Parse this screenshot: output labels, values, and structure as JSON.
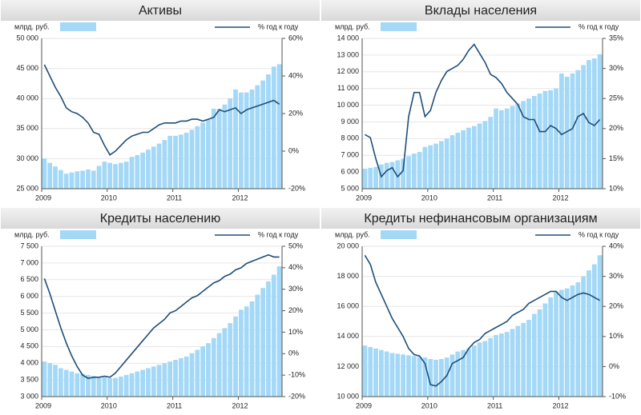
{
  "chart_data": [
    {
      "type": "combo",
      "title": "Активы",
      "categories": [
        "2009",
        null,
        null,
        null,
        null,
        null,
        null,
        null,
        null,
        null,
        null,
        null,
        "2010",
        null,
        null,
        null,
        null,
        null,
        null,
        null,
        null,
        null,
        null,
        null,
        "2011",
        null,
        null,
        null,
        null,
        null,
        null,
        null,
        null,
        null,
        null,
        null,
        "2012",
        null,
        null,
        null,
        null,
        null,
        null,
        null
      ],
      "series": [
        {
          "name": "млрд. руб.",
          "type": "bar",
          "color": "#a3d8f7",
          "values": [
            30000,
            29300,
            28700,
            28100,
            27500,
            27700,
            27900,
            28000,
            28200,
            28000,
            28800,
            29500,
            29300,
            29100,
            29300,
            29500,
            30300,
            30600,
            31000,
            31500,
            32000,
            32500,
            33100,
            33800,
            33800,
            34000,
            34300,
            34800,
            35400,
            36000,
            36500,
            38300,
            38300,
            39000,
            40000,
            41500,
            41000,
            41000,
            41500,
            42200,
            43000,
            44000,
            45300,
            45700
          ]
        },
        {
          "name": "% год к году",
          "type": "line",
          "axis": "y2",
          "color": "#1f4e79",
          "values": [
            46,
            40,
            34,
            29,
            23,
            21,
            20,
            18,
            15,
            10,
            9,
            3,
            -2,
            0,
            3,
            6,
            8,
            9,
            10,
            10,
            12,
            14,
            15,
            15,
            15,
            16,
            16,
            17,
            17,
            16,
            17,
            18,
            22,
            21,
            22,
            23,
            20,
            22,
            23,
            24,
            25,
            26,
            27,
            25
          ]
        }
      ],
      "ylim": [
        25000,
        50000
      ],
      "yticks": [
        {
          "value": 25000,
          "label": "25 000"
        },
        {
          "value": 30000,
          "label": "30 000"
        },
        {
          "value": 35000,
          "label": "35 000"
        },
        {
          "value": 40000,
          "label": "40 000"
        },
        {
          "value": 45000,
          "label": "45 000"
        },
        {
          "value": 50000,
          "label": "50 000"
        }
      ],
      "y2lim": [
        -20,
        60
      ],
      "y2ticks": [
        {
          "value": -20,
          "label": "-20%"
        },
        {
          "value": 0,
          "label": "0%"
        },
        {
          "value": 20,
          "label": "20%"
        },
        {
          "value": 40,
          "label": "40%"
        },
        {
          "value": 60,
          "label": "60%"
        }
      ],
      "grid": true
    },
    {
      "type": "combo",
      "title": "Вклады населения",
      "categories": [
        "2009",
        null,
        null,
        null,
        null,
        null,
        null,
        null,
        null,
        null,
        null,
        null,
        "2010",
        null,
        null,
        null,
        null,
        null,
        null,
        null,
        null,
        null,
        null,
        null,
        "2011",
        null,
        null,
        null,
        null,
        null,
        null,
        null,
        null,
        null,
        null,
        null,
        "2012",
        null,
        null,
        null,
        null,
        null,
        null,
        null
      ],
      "series": [
        {
          "name": "млрд. руб.",
          "type": "bar",
          "color": "#a3d8f7",
          "values": [
            6200,
            6250,
            6300,
            6450,
            6550,
            6600,
            6700,
            6800,
            6950,
            7100,
            7200,
            7500,
            7600,
            7700,
            7850,
            8000,
            8200,
            8350,
            8500,
            8650,
            8750,
            8900,
            9050,
            9300,
            9800,
            9700,
            9800,
            9950,
            10100,
            10250,
            10400,
            10550,
            10700,
            10850,
            10900,
            11000,
            11900,
            11700,
            11900,
            12100,
            12400,
            12700,
            12800,
            13050
          ]
        },
        {
          "name": "% год к году",
          "type": "line",
          "axis": "y2",
          "color": "#1f4e79",
          "values": [
            19,
            18.5,
            15,
            12,
            13,
            13.5,
            12,
            13,
            22,
            26,
            26,
            22,
            23,
            26,
            28,
            29.5,
            30,
            30.5,
            31.5,
            33,
            34,
            32.5,
            31,
            29,
            28.5,
            27.5,
            26,
            25,
            24,
            22,
            21.5,
            21.5,
            19.5,
            19.5,
            20.5,
            20,
            19,
            19.5,
            20,
            22,
            22.5,
            21,
            20.5,
            21.5
          ]
        }
      ],
      "ylim": [
        5000,
        14000
      ],
      "yticks": [
        {
          "value": 5000,
          "label": "5 000"
        },
        {
          "value": 6000,
          "label": "6 000"
        },
        {
          "value": 7000,
          "label": "7 000"
        },
        {
          "value": 8000,
          "label": "8 000"
        },
        {
          "value": 9000,
          "label": "9 000"
        },
        {
          "value": 10000,
          "label": "10 000"
        },
        {
          "value": 11000,
          "label": "11 000"
        },
        {
          "value": 12000,
          "label": "12 000"
        },
        {
          "value": 13000,
          "label": "13 000"
        },
        {
          "value": 14000,
          "label": "14 000"
        }
      ],
      "y2lim": [
        10,
        35
      ],
      "y2ticks": [
        {
          "value": 10,
          "label": "10%"
        },
        {
          "value": 15,
          "label": "15%"
        },
        {
          "value": 20,
          "label": "20%"
        },
        {
          "value": 25,
          "label": "25%"
        },
        {
          "value": 30,
          "label": "30%"
        },
        {
          "value": 35,
          "label": "35%"
        }
      ],
      "grid": true
    },
    {
      "type": "combo",
      "title": "Кредиты населению",
      "categories": [
        "2009",
        null,
        null,
        null,
        null,
        null,
        null,
        null,
        null,
        null,
        null,
        null,
        "2010",
        null,
        null,
        null,
        null,
        null,
        null,
        null,
        null,
        null,
        null,
        null,
        "2011",
        null,
        null,
        null,
        null,
        null,
        null,
        null,
        null,
        null,
        null,
        null,
        "2012",
        null,
        null,
        null,
        null,
        null,
        null,
        null
      ],
      "series": [
        {
          "name": "млрд. руб.",
          "type": "bar",
          "color": "#a3d8f7",
          "values": [
            4050,
            4000,
            3950,
            3850,
            3800,
            3750,
            3700,
            3680,
            3650,
            3620,
            3600,
            3580,
            3550,
            3560,
            3600,
            3650,
            3700,
            3750,
            3800,
            3850,
            3900,
            3950,
            4000,
            4050,
            4100,
            4150,
            4200,
            4300,
            4400,
            4500,
            4600,
            4750,
            4900,
            5050,
            5200,
            5400,
            5600,
            5700,
            5850,
            6050,
            6250,
            6450,
            6650,
            6900
          ]
        },
        {
          "name": "% год к году",
          "type": "line",
          "axis": "y2",
          "color": "#1f4e79",
          "values": [
            35,
            28,
            20,
            12,
            5,
            -1,
            -6,
            -10,
            -11.5,
            -11,
            -11,
            -10.5,
            -11,
            -9,
            -6,
            -3,
            0,
            3,
            6,
            9,
            12,
            14,
            16,
            19,
            20,
            22,
            24,
            26,
            27,
            29,
            31,
            33,
            34,
            36,
            37,
            39,
            40,
            42,
            43,
            44,
            45,
            46,
            45,
            45
          ]
        }
      ],
      "ylim": [
        3000,
        7500
      ],
      "yticks": [
        {
          "value": 3000,
          "label": "3 000"
        },
        {
          "value": 3500,
          "label": "3 500"
        },
        {
          "value": 4000,
          "label": "4 000"
        },
        {
          "value": 4500,
          "label": "4 500"
        },
        {
          "value": 5000,
          "label": "5 000"
        },
        {
          "value": 5500,
          "label": "5 500"
        },
        {
          "value": 6000,
          "label": "6 000"
        },
        {
          "value": 6500,
          "label": "6 500"
        },
        {
          "value": 7000,
          "label": "7 000"
        },
        {
          "value": 7500,
          "label": "7 500"
        }
      ],
      "y2lim": [
        -20,
        50
      ],
      "y2ticks": [
        {
          "value": -20,
          "label": "-20%"
        },
        {
          "value": -10,
          "label": "-10%"
        },
        {
          "value": 0,
          "label": "0%"
        },
        {
          "value": 10,
          "label": "10%"
        },
        {
          "value": 20,
          "label": "20%"
        },
        {
          "value": 30,
          "label": "30%"
        },
        {
          "value": 40,
          "label": "40%"
        },
        {
          "value": 50,
          "label": "50%"
        }
      ],
      "grid": true
    },
    {
      "type": "combo",
      "title": "Кредиты нефинансовым организациям",
      "categories": [
        "2009",
        null,
        null,
        null,
        null,
        null,
        null,
        null,
        null,
        null,
        null,
        null,
        "2010",
        null,
        null,
        null,
        null,
        null,
        null,
        null,
        null,
        null,
        null,
        null,
        "2011",
        null,
        null,
        null,
        null,
        null,
        null,
        null,
        null,
        null,
        null,
        null,
        "2012",
        null,
        null,
        null,
        null,
        null,
        null,
        null
      ],
      "series": [
        {
          "name": "млрд. руб.",
          "type": "bar",
          "color": "#a3d8f7",
          "values": [
            13400,
            13300,
            13200,
            13100,
            13000,
            12900,
            12850,
            12800,
            12750,
            12700,
            12650,
            12600,
            12500,
            12450,
            12500,
            12600,
            12800,
            13000,
            13100,
            13200,
            13400,
            13600,
            13700,
            13900,
            14100,
            14200,
            14300,
            14500,
            14700,
            14900,
            15100,
            15500,
            15800,
            16200,
            16600,
            17000,
            17100,
            17200,
            17400,
            17600,
            18000,
            18400,
            18800,
            19400
          ]
        },
        {
          "name": "% год к году",
          "type": "line",
          "axis": "y2",
          "color": "#1f4e79",
          "values": [
            37,
            34,
            28,
            24,
            20,
            16,
            13,
            10,
            6,
            4,
            3.5,
            1,
            -6,
            -6.5,
            -5,
            -3,
            1,
            2,
            3,
            6,
            8,
            9,
            11,
            12,
            13,
            14,
            15,
            17,
            18,
            19,
            21,
            22,
            23,
            24,
            25,
            25,
            23,
            22,
            23,
            24,
            24.5,
            24,
            23,
            22
          ]
        }
      ],
      "ylim": [
        10000,
        20000
      ],
      "yticks": [
        {
          "value": 10000,
          "label": "10 000"
        },
        {
          "value": 12000,
          "label": "12 000"
        },
        {
          "value": 14000,
          "label": "14 000"
        },
        {
          "value": 16000,
          "label": "16 000"
        },
        {
          "value": 18000,
          "label": "18 000"
        },
        {
          "value": 20000,
          "label": "20 000"
        }
      ],
      "y2lim": [
        -10,
        40
      ],
      "y2ticks": [
        {
          "value": -10,
          "label": "-10%"
        },
        {
          "value": 0,
          "label": "0%"
        },
        {
          "value": 10,
          "label": "10%"
        },
        {
          "value": 20,
          "label": "20%"
        },
        {
          "value": 30,
          "label": "30%"
        },
        {
          "value": 40,
          "label": "40%"
        }
      ],
      "grid": true
    }
  ]
}
